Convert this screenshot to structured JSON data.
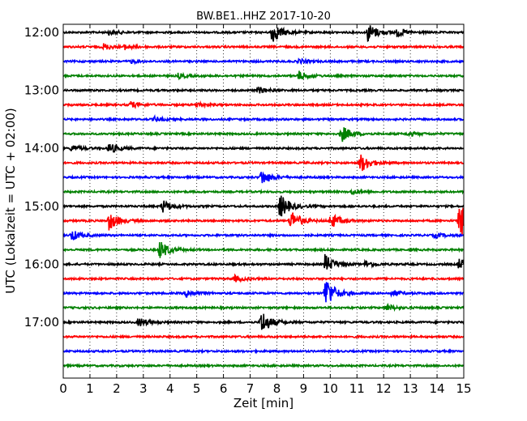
{
  "chart_data": {
    "type": "line",
    "title": "BW.BE1..HHZ 2017-10-20",
    "xlabel": "Zeit  [min]",
    "ylabel": "UTC (Lokalzeit = UTC + 02:00)",
    "xlim": [
      0,
      15
    ],
    "x_ticks": [
      "0",
      "1",
      "2",
      "3",
      "4",
      "5",
      "6",
      "7",
      "8",
      "9",
      "10",
      "11",
      "12",
      "13",
      "14",
      "15"
    ],
    "y_ticks": [
      "12:00",
      "13:00",
      "14:00",
      "15:00",
      "16:00",
      "17:00"
    ],
    "grid": true,
    "trace_interval_min": 15,
    "trace_colors": [
      "#000000",
      "#ff0000",
      "#0000ff",
      "#008000"
    ],
    "traces": [
      {
        "start": "12:00",
        "events": [
          [
            1.7,
            3
          ],
          [
            7.8,
            14
          ],
          [
            11.4,
            12
          ],
          [
            12.5,
            5
          ]
        ]
      },
      {
        "start": "12:15",
        "events": [
          [
            1.5,
            4
          ],
          [
            2.3,
            3
          ]
        ]
      },
      {
        "start": "12:30",
        "events": [
          [
            2.5,
            2
          ],
          [
            8.8,
            3
          ]
        ]
      },
      {
        "start": "12:45",
        "events": [
          [
            4.3,
            3
          ],
          [
            8.8,
            6
          ]
        ]
      },
      {
        "start": "13:00",
        "events": [
          [
            7.3,
            4
          ]
        ]
      },
      {
        "start": "13:15",
        "events": [
          [
            2.5,
            4
          ],
          [
            5.0,
            3
          ]
        ]
      },
      {
        "start": "13:30",
        "events": [
          [
            3.4,
            3
          ]
        ]
      },
      {
        "start": "13:45",
        "events": [
          [
            10.4,
            11
          ],
          [
            12.9,
            3
          ]
        ]
      },
      {
        "start": "14:00",
        "events": [
          [
            0.3,
            4
          ],
          [
            1.7,
            7
          ]
        ]
      },
      {
        "start": "14:15",
        "events": [
          [
            11.1,
            13
          ]
        ]
      },
      {
        "start": "14:30",
        "events": [
          [
            7.4,
            10
          ]
        ]
      },
      {
        "start": "14:45",
        "events": [
          [
            10.8,
            3
          ]
        ]
      },
      {
        "start": "15:00",
        "events": [
          [
            3.7,
            8
          ],
          [
            8.1,
            16
          ]
        ]
      },
      {
        "start": "15:15",
        "events": [
          [
            1.7,
            12
          ],
          [
            8.5,
            14
          ],
          [
            10.0,
            10
          ],
          [
            14.8,
            26
          ]
        ]
      },
      {
        "start": "15:30",
        "events": [
          [
            0.3,
            7
          ],
          [
            13.9,
            3
          ]
        ]
      },
      {
        "start": "15:45",
        "events": [
          [
            3.6,
            12
          ]
        ]
      },
      {
        "start": "16:00",
        "events": [
          [
            9.8,
            12
          ],
          [
            11.3,
            4
          ],
          [
            14.8,
            7
          ]
        ]
      },
      {
        "start": "16:15",
        "events": [
          [
            6.4,
            4
          ]
        ]
      },
      {
        "start": "16:30",
        "events": [
          [
            4.6,
            5
          ],
          [
            9.8,
            22
          ],
          [
            12.3,
            4
          ]
        ]
      },
      {
        "start": "16:45",
        "events": [
          [
            12.1,
            4
          ]
        ]
      },
      {
        "start": "17:00",
        "events": [
          [
            2.8,
            6
          ],
          [
            7.4,
            16
          ]
        ]
      },
      {
        "start": "17:15",
        "events": []
      },
      {
        "start": "17:30",
        "events": []
      },
      {
        "start": "17:45",
        "events": []
      }
    ]
  }
}
